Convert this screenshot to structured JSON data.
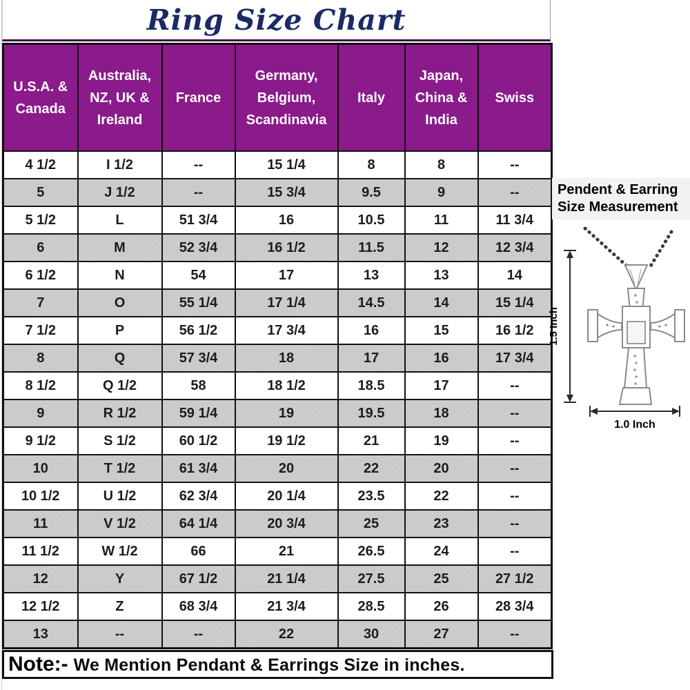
{
  "title": "Ring Size Chart",
  "chart_data": {
    "type": "table",
    "title": "Ring Size Chart",
    "columns": [
      "U.S.A. & Canada",
      "Australia, NZ, UK & Ireland",
      "France",
      "Germany, Belgium, Scandinavia",
      "Italy",
      "Japan, China & India",
      "Swiss"
    ],
    "rows": [
      [
        "4 1/2",
        "I 1/2",
        "--",
        "15 1/4",
        "8",
        "8",
        "--"
      ],
      [
        "5",
        "J 1/2",
        "--",
        "15 3/4",
        "9.5",
        "9",
        "--"
      ],
      [
        "5 1/2",
        "L",
        "51 3/4",
        "16",
        "10.5",
        "11",
        "11 3/4"
      ],
      [
        "6",
        "M",
        "52 3/4",
        "16 1/2",
        "11.5",
        "12",
        "12 3/4"
      ],
      [
        "6 1/2",
        "N",
        "54",
        "17",
        "13",
        "13",
        "14"
      ],
      [
        "7",
        "O",
        "55 1/4",
        "17 1/4",
        "14.5",
        "14",
        "15 1/4"
      ],
      [
        "7 1/2",
        "P",
        "56 1/2",
        "17 3/4",
        "16",
        "15",
        "16 1/2"
      ],
      [
        "8",
        "Q",
        "57 3/4",
        "18",
        "17",
        "16",
        "17 3/4"
      ],
      [
        "8 1/2",
        "Q 1/2",
        "58",
        "18 1/2",
        "18.5",
        "17",
        "--"
      ],
      [
        "9",
        "R 1/2",
        "59 1/4",
        "19",
        "19.5",
        "18",
        "--"
      ],
      [
        "9 1/2",
        "S 1/2",
        "60 1/2",
        "19 1/2",
        "21",
        "19",
        "--"
      ],
      [
        "10",
        "T 1/2",
        "61 3/4",
        "20",
        "22",
        "20",
        "--"
      ],
      [
        "10 1/2",
        "U 1/2",
        "62 3/4",
        "20 1/4",
        "23.5",
        "22",
        "--"
      ],
      [
        "11",
        "V 1/2",
        "64 1/4",
        "20 3/4",
        "25",
        "23",
        "--"
      ],
      [
        "11 1/2",
        "W 1/2",
        "66",
        "21",
        "26.5",
        "24",
        "--"
      ],
      [
        "12",
        "Y",
        "67 1/2",
        "21 1/4",
        "27.5",
        "25",
        "27 1/2"
      ],
      [
        "12 1/2",
        "Z",
        "68 3/4",
        "21 3/4",
        "28.5",
        "26",
        "28 3/4"
      ],
      [
        "13",
        "--",
        "--",
        "22",
        "30",
        "27",
        "--"
      ]
    ]
  },
  "note": {
    "label": "Note:-",
    "text": "We Mention Pendant & Earrings Size in inches."
  },
  "pendant_panel": {
    "heading": [
      "Pendent & Earring",
      "Size Measurement"
    ],
    "height_label": "1.5 Inch",
    "width_label": "1.0 Inch"
  },
  "colors": {
    "header_bg": "#8b1a8b",
    "header_text": "#ffffff",
    "alt_row_bg": "#c9c9c9",
    "title_text": "#1b2a66",
    "table_border": "#111111",
    "heading_panel_bg": "#f2f2f2"
  }
}
